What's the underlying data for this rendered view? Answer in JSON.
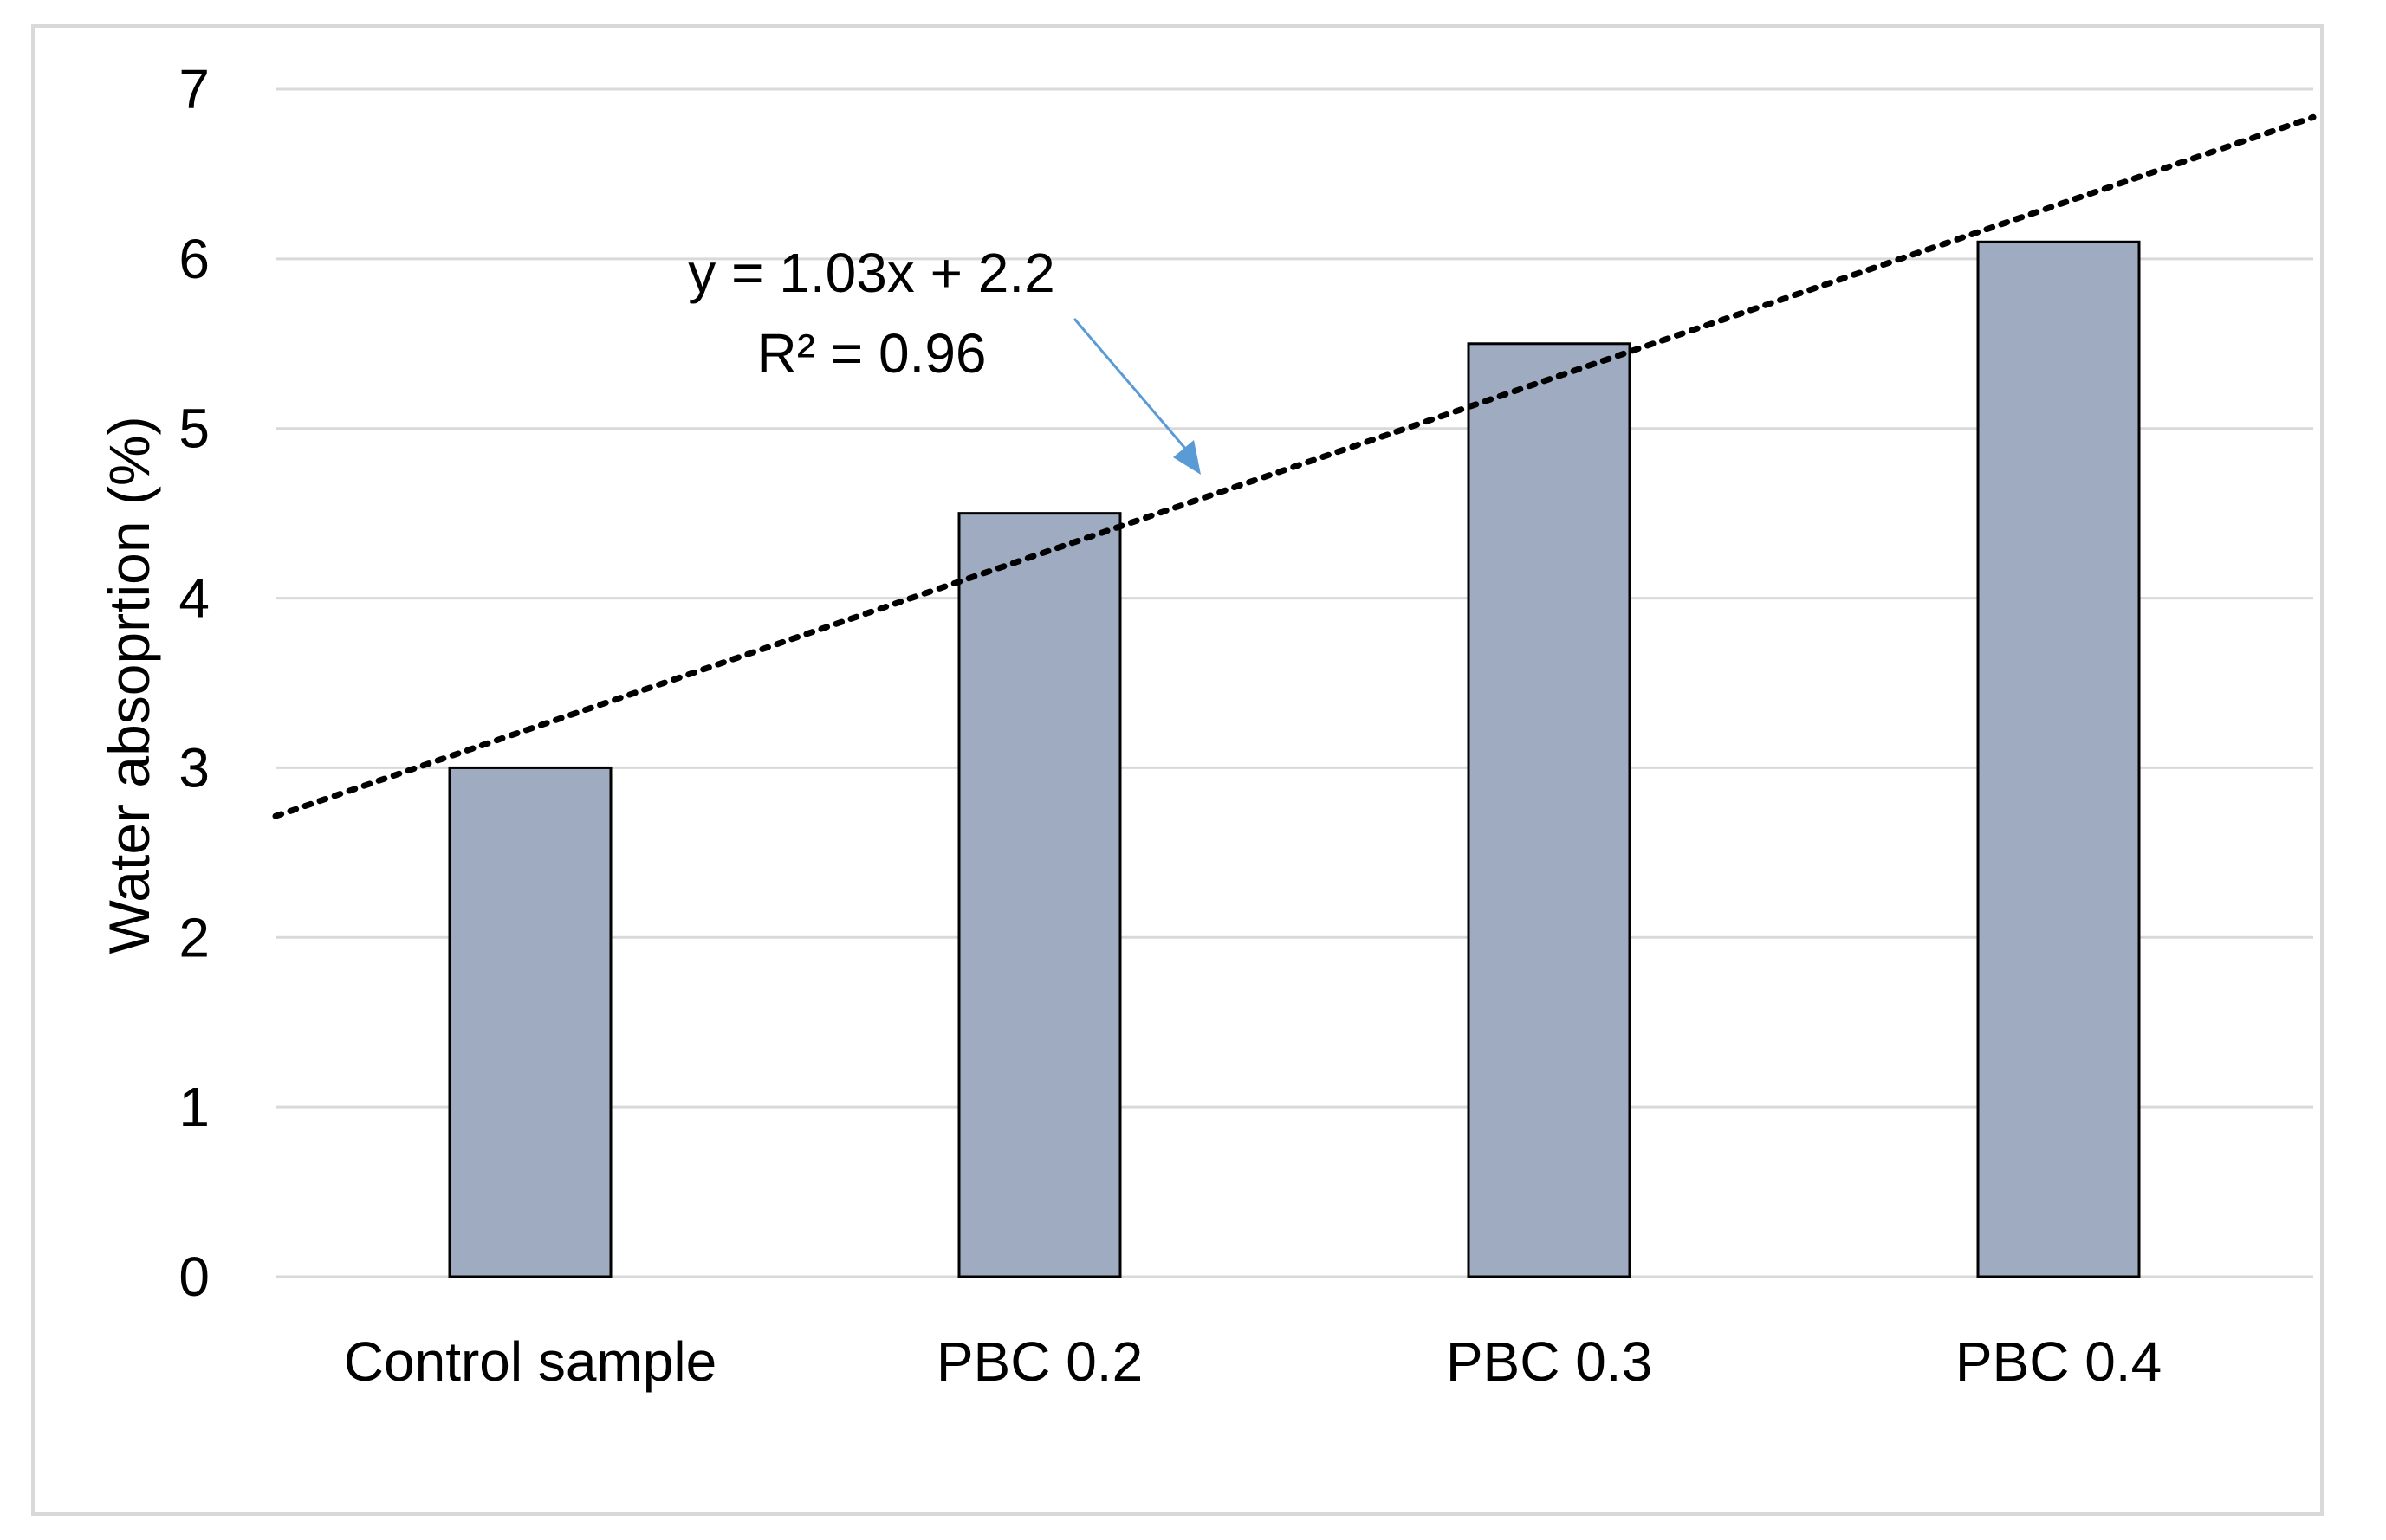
{
  "chart_data": {
    "type": "bar",
    "title": "",
    "xlabel": "",
    "ylabel": "Water absoprtion (%)",
    "categories": [
      "Control sample",
      "PBC 0.2",
      "PBC 0.3",
      "PBC 0.4"
    ],
    "values": [
      3.0,
      4.5,
      5.5,
      6.1
    ],
    "ylim": [
      0,
      7
    ],
    "yticks": [
      "0",
      "1",
      "2",
      "3",
      "4",
      "5",
      "6",
      "7"
    ],
    "grid": true,
    "legend": "none",
    "trendline": {
      "type": "linear",
      "style": "dotted",
      "equation": "y = 1.03x + 2.2",
      "r_squared": "R² = 0.96",
      "slope": 1.03,
      "intercept": 2.2
    },
    "colors": {
      "bar_fill": "#9eabc0",
      "bar_stroke": "#000000",
      "grid": "#d9d9d9",
      "trendline": "#000000",
      "arrow": "#5b9bd5",
      "frame": "#d9d9d9"
    }
  }
}
